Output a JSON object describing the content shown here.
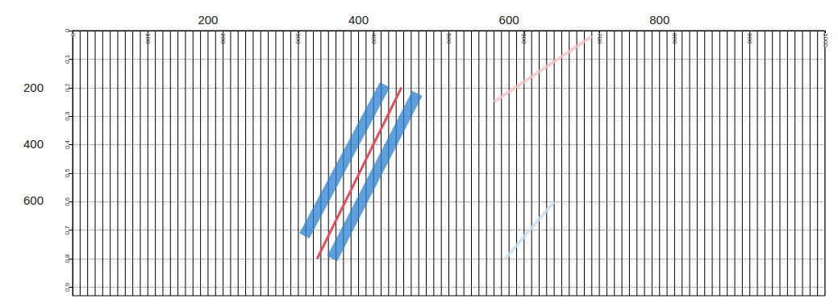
{
  "chart_data": {
    "type": "seismic_section",
    "xlim": [
      0,
      1000
    ],
    "xticks": [
      0,
      100,
      200,
      300,
      400,
      500,
      600,
      700,
      800,
      900,
      1000
    ],
    "ylim": [
      0,
      0.93
    ],
    "yticks": [
      0,
      0.1,
      0.2,
      0.3,
      0.4,
      0.5,
      0.6,
      0.7,
      0.8,
      0.9
    ],
    "x2lim": [
      20,
      1020
    ],
    "x2ticks": [
      200,
      400,
      600,
      800
    ],
    "y2lim": [
      0,
      940
    ],
    "y2ticks": [
      200,
      400,
      600
    ],
    "grid": true,
    "series": [
      {
        "type": "wiggle",
        "color": "#000000",
        "x": [
          0,
          10,
          20,
          30,
          40,
          50,
          60,
          70,
          80,
          90,
          100,
          110,
          120,
          130,
          140,
          150,
          160,
          170,
          180,
          190,
          200,
          210,
          220,
          230,
          240,
          250,
          260,
          270,
          280,
          290,
          300,
          310,
          320,
          330,
          340,
          350,
          360,
          370,
          380,
          390,
          400,
          410,
          420,
          430,
          440,
          450,
          460,
          470,
          480,
          490,
          500,
          510,
          520,
          530,
          540,
          550,
          560,
          570,
          580,
          590,
          600,
          610,
          620,
          630,
          640,
          650,
          660,
          670,
          680,
          690,
          700,
          710,
          720,
          730,
          740,
          750,
          760,
          770,
          780,
          790,
          800,
          810,
          820,
          830,
          840,
          850,
          860,
          870,
          880,
          890,
          900,
          910,
          920,
          930,
          940,
          950,
          960,
          970,
          980,
          990,
          1000
        ]
      },
      {
        "type": "line",
        "line_style": "faint",
        "color": "#f4c2c2",
        "values": [
          [
            690,
            0.02
          ],
          [
            560,
            0.25
          ]
        ]
      },
      {
        "type": "line",
        "line_style": "faint",
        "color": "#c6def2",
        "values": [
          [
            640,
            0.6
          ],
          [
            575,
            0.8
          ]
        ]
      },
      {
        "type": "line",
        "line_style": "band",
        "color": "#2a7fd0",
        "values": [
          [
            415,
            0.19
          ],
          [
            308,
            0.72
          ]
        ]
      },
      {
        "type": "line",
        "line_style": "band",
        "color": "#2a7fd0",
        "values": [
          [
            458,
            0.22
          ],
          [
            345,
            0.8
          ]
        ]
      },
      {
        "type": "line",
        "line_style": "solid",
        "color": "#e0505a",
        "values": [
          [
            437,
            0.2
          ],
          [
            325,
            0.8
          ]
        ]
      }
    ]
  }
}
